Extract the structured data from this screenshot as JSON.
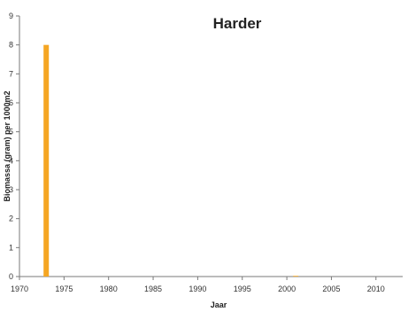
{
  "chart_data": {
    "type": "bar",
    "title": "Harder",
    "xlabel": "Jaar",
    "ylabel": "Biomassa (gram) per 1000m2",
    "xlim": [
      1970,
      2013
    ],
    "ylim": [
      0,
      9
    ],
    "x_ticks": [
      1970,
      1975,
      1980,
      1985,
      1990,
      1995,
      2000,
      2005,
      2010
    ],
    "y_ticks": [
      0,
      1,
      2,
      3,
      4,
      5,
      6,
      7,
      8,
      9
    ],
    "grid": false,
    "legend": "none",
    "series": [
      {
        "color": "#f5a623",
        "x": [
          1973,
          2001
        ],
        "y": [
          8.0,
          0.02
        ]
      }
    ]
  }
}
